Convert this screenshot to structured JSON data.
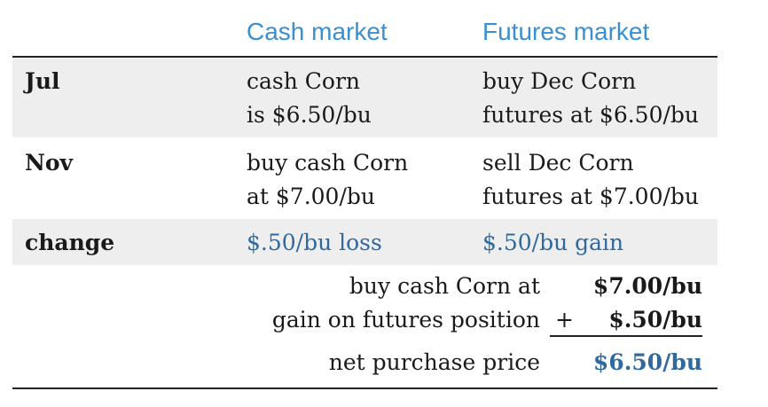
{
  "headers": {
    "cash": "Cash market",
    "futures": "Futures market"
  },
  "rows": [
    {
      "label": "Jul",
      "cash": [
        "cash Corn",
        "is $6.50/bu"
      ],
      "futures": [
        "buy Dec Corn",
        "futures at $6.50/bu"
      ]
    },
    {
      "label": "Nov",
      "cash": [
        "buy cash Corn",
        "at $7.00/bu"
      ],
      "futures": [
        "sell Dec Corn",
        "futures at $7.00/bu"
      ]
    },
    {
      "label": "change",
      "cash": [
        "$.50/bu loss"
      ],
      "futures": [
        "$.50/bu gain"
      ]
    }
  ],
  "summary": [
    {
      "label": "buy cash Corn at",
      "op": "",
      "value": "$7.00/bu"
    },
    {
      "label": "gain on futures position",
      "op": "+",
      "value": "$.50/bu"
    },
    {
      "label": "net purchase price",
      "op": "",
      "value": "$6.50/bu"
    }
  ],
  "colors": {
    "header": "#3a8fd0",
    "accent_value": "#2e6aa0",
    "row_shade": "#eeeeee"
  }
}
